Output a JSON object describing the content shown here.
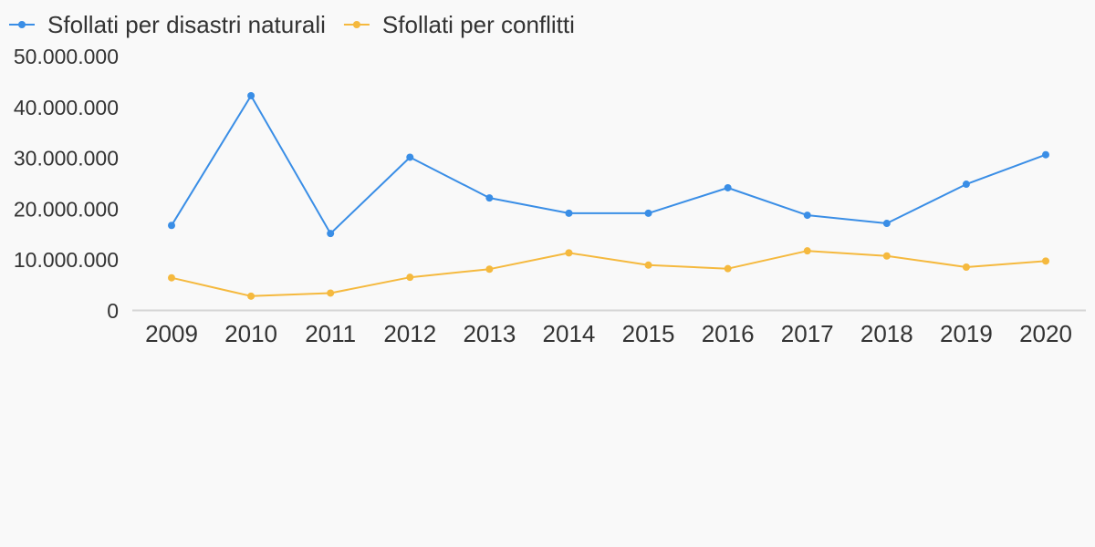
{
  "chart_data": {
    "type": "line",
    "title": "",
    "xlabel": "",
    "ylabel": "",
    "x": [
      "2009",
      "2010",
      "2011",
      "2012",
      "2013",
      "2014",
      "2015",
      "2016",
      "2017",
      "2018",
      "2019",
      "2020"
    ],
    "ylim": [
      0,
      50000000
    ],
    "yticks": [
      0,
      10000000,
      20000000,
      30000000,
      40000000,
      50000000
    ],
    "ytick_labels": [
      "0",
      "10.000.000",
      "20.000.000",
      "30.000.000",
      "40.000.000",
      "50.000.000"
    ],
    "grid": false,
    "legend_position": "top-left",
    "series": [
      {
        "name": "Sfollati per disastri naturali",
        "color": "#3a8ee6",
        "values": [
          16800000,
          42300000,
          15200000,
          30200000,
          22200000,
          19200000,
          19200000,
          24200000,
          18800000,
          17200000,
          24900000,
          30700000
        ]
      },
      {
        "name": "Sfollati per conflitti",
        "color": "#f5b93e",
        "values": [
          6500000,
          2900000,
          3500000,
          6600000,
          8200000,
          11400000,
          9000000,
          8300000,
          11800000,
          10800000,
          8600000,
          9800000
        ]
      }
    ]
  }
}
